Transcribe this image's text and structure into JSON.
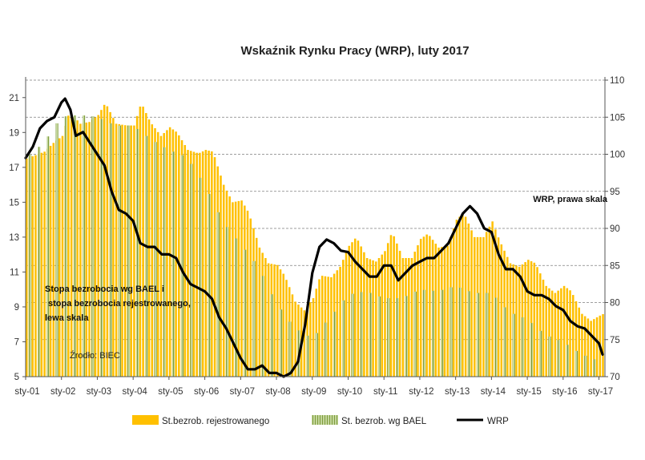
{
  "chart_data": {
    "type": "bar",
    "title": "Wskaźnik Rynku Pracy (WRP), luty 2017",
    "left_axis": {
      "range": [
        5,
        22
      ],
      "ticks": [
        5,
        7,
        9,
        11,
        13,
        15,
        17,
        19,
        21
      ]
    },
    "right_axis": {
      "range": [
        70,
        110
      ],
      "ticks": [
        70,
        75,
        80,
        85,
        90,
        95,
        100,
        105,
        110
      ]
    },
    "x_tick_labels": [
      "sty-01",
      "sty-02",
      "sty-03",
      "sty-04",
      "sty-05",
      "sty-06",
      "sty-07",
      "sty-08",
      "sty-09",
      "sty-10",
      "sty-11",
      "sty-12",
      "sty-13",
      "sty-14",
      "sty-15",
      "sty-16",
      "sty-17"
    ],
    "x_range": [
      2001.0,
      2017.1667
    ],
    "grid": "horizontal dashed",
    "legend_position": "bottom",
    "series": [
      {
        "name": "St.bezrob. rejestrowanego",
        "type": "bar",
        "axis": "left",
        "color": "#FFC000",
        "points": [
          [
            2001.0,
            17.5
          ],
          [
            2001.5,
            17.9
          ],
          [
            2001.75,
            18.4
          ],
          [
            2002.0,
            18.8
          ],
          [
            2002.2,
            20.2
          ],
          [
            2002.5,
            19.5
          ],
          [
            2002.75,
            19.6
          ],
          [
            2003.0,
            20.0
          ],
          [
            2003.2,
            20.7
          ],
          [
            2003.5,
            19.5
          ],
          [
            2003.8,
            19.4
          ],
          [
            2004.0,
            19.4
          ],
          [
            2004.2,
            20.7
          ],
          [
            2004.45,
            19.6
          ],
          [
            2004.75,
            18.8
          ],
          [
            2005.0,
            19.3
          ],
          [
            2005.2,
            19.0
          ],
          [
            2005.5,
            18.0
          ],
          [
            2005.8,
            17.8
          ],
          [
            2006.0,
            18.0
          ],
          [
            2006.2,
            17.9
          ],
          [
            2006.5,
            16.0
          ],
          [
            2006.75,
            15.0
          ],
          [
            2007.0,
            15.1
          ],
          [
            2007.2,
            14.4
          ],
          [
            2007.5,
            12.4
          ],
          [
            2007.75,
            11.5
          ],
          [
            2008.0,
            11.4
          ],
          [
            2008.2,
            10.8
          ],
          [
            2008.5,
            9.3
          ],
          [
            2008.75,
            8.8
          ],
          [
            2009.0,
            9.5
          ],
          [
            2009.2,
            10.8
          ],
          [
            2009.5,
            10.7
          ],
          [
            2009.75,
            11.3
          ],
          [
            2010.0,
            12.5
          ],
          [
            2010.2,
            13.0
          ],
          [
            2010.5,
            11.8
          ],
          [
            2010.75,
            11.6
          ],
          [
            2011.0,
            12.2
          ],
          [
            2011.2,
            13.3
          ],
          [
            2011.5,
            11.8
          ],
          [
            2011.75,
            11.8
          ],
          [
            2012.0,
            12.9
          ],
          [
            2012.2,
            13.2
          ],
          [
            2012.5,
            12.4
          ],
          [
            2012.75,
            12.5
          ],
          [
            2013.0,
            14.0
          ],
          [
            2013.2,
            14.4
          ],
          [
            2013.5,
            13.0
          ],
          [
            2013.75,
            13.0
          ],
          [
            2014.0,
            13.9
          ],
          [
            2014.2,
            12.8
          ],
          [
            2014.5,
            11.5
          ],
          [
            2014.75,
            11.3
          ],
          [
            2015.0,
            11.7
          ],
          [
            2015.2,
            11.5
          ],
          [
            2015.5,
            10.2
          ],
          [
            2015.75,
            9.8
          ],
          [
            2016.0,
            10.2
          ],
          [
            2016.2,
            9.9
          ],
          [
            2016.5,
            8.6
          ],
          [
            2016.75,
            8.2
          ],
          [
            2017.0,
            8.5
          ],
          [
            2017.1,
            8.6
          ]
        ]
      },
      {
        "name": "St. bezrob. wg BAEL",
        "type": "bar",
        "axis": "left",
        "color": "#9BBB59",
        "points": [
          [
            2001.0,
            17.5
          ],
          [
            2001.5,
            18.4
          ],
          [
            2002.0,
            19.9
          ],
          [
            2002.5,
            20.0
          ],
          [
            2003.0,
            19.9
          ],
          [
            2003.5,
            19.4
          ],
          [
            2004.0,
            19.4
          ],
          [
            2004.5,
            18.6
          ],
          [
            2005.0,
            18.0
          ],
          [
            2005.5,
            17.6
          ],
          [
            2006.0,
            16.0
          ],
          [
            2006.5,
            13.9
          ],
          [
            2007.0,
            12.6
          ],
          [
            2007.5,
            11.3
          ],
          [
            2008.0,
            9.2
          ],
          [
            2008.5,
            7.8
          ],
          [
            2009.0,
            7.2
          ],
          [
            2009.5,
            8.4
          ],
          [
            2010.0,
            9.7
          ],
          [
            2010.5,
            9.9
          ],
          [
            2011.0,
            9.5
          ],
          [
            2011.5,
            9.5
          ],
          [
            2012.0,
            10.0
          ],
          [
            2012.5,
            9.9
          ],
          [
            2013.0,
            10.2
          ],
          [
            2013.5,
            9.8
          ],
          [
            2014.0,
            9.8
          ],
          [
            2014.5,
            8.7
          ],
          [
            2015.0,
            8.3
          ],
          [
            2015.5,
            7.4
          ],
          [
            2016.0,
            7.0
          ],
          [
            2016.5,
            6.3
          ],
          [
            2017.0,
            5.9
          ]
        ]
      },
      {
        "name": "WRP",
        "type": "line",
        "axis": "right",
        "color": "#000000",
        "points": [
          [
            2001.0,
            99.5
          ],
          [
            2001.2,
            101.0
          ],
          [
            2001.4,
            103.5
          ],
          [
            2001.6,
            104.5
          ],
          [
            2001.8,
            105.0
          ],
          [
            2002.0,
            107.0
          ],
          [
            2002.1,
            107.5
          ],
          [
            2002.25,
            106.0
          ],
          [
            2002.4,
            102.5
          ],
          [
            2002.6,
            103.0
          ],
          [
            2002.8,
            101.5
          ],
          [
            2003.0,
            100.0
          ],
          [
            2003.2,
            98.5
          ],
          [
            2003.4,
            95.0
          ],
          [
            2003.6,
            92.5
          ],
          [
            2003.8,
            92.0
          ],
          [
            2004.0,
            91.0
          ],
          [
            2004.2,
            88.0
          ],
          [
            2004.4,
            87.5
          ],
          [
            2004.6,
            87.5
          ],
          [
            2004.8,
            86.5
          ],
          [
            2005.0,
            86.5
          ],
          [
            2005.2,
            86.0
          ],
          [
            2005.4,
            84.0
          ],
          [
            2005.6,
            82.5
          ],
          [
            2005.8,
            82.0
          ],
          [
            2006.0,
            81.5
          ],
          [
            2006.2,
            80.5
          ],
          [
            2006.4,
            78.0
          ],
          [
            2006.6,
            76.5
          ],
          [
            2006.8,
            74.5
          ],
          [
            2007.0,
            72.5
          ],
          [
            2007.2,
            71.0
          ],
          [
            2007.4,
            71.0
          ],
          [
            2007.6,
            71.5
          ],
          [
            2007.8,
            70.5
          ],
          [
            2008.0,
            70.5
          ],
          [
            2008.2,
            70.0
          ],
          [
            2008.4,
            70.5
          ],
          [
            2008.6,
            72.0
          ],
          [
            2008.8,
            77.0
          ],
          [
            2009.0,
            84.0
          ],
          [
            2009.2,
            87.5
          ],
          [
            2009.4,
            88.5
          ],
          [
            2009.6,
            88.0
          ],
          [
            2009.8,
            87.0
          ],
          [
            2010.0,
            86.8
          ],
          [
            2010.2,
            85.5
          ],
          [
            2010.4,
            84.5
          ],
          [
            2010.6,
            83.5
          ],
          [
            2010.8,
            83.5
          ],
          [
            2011.0,
            85.0
          ],
          [
            2011.2,
            85.0
          ],
          [
            2011.4,
            83.0
          ],
          [
            2011.6,
            84.0
          ],
          [
            2011.8,
            85.0
          ],
          [
            2012.0,
            85.5
          ],
          [
            2012.2,
            86.0
          ],
          [
            2012.4,
            86.0
          ],
          [
            2012.6,
            87.0
          ],
          [
            2012.8,
            88.0
          ],
          [
            2013.0,
            90.0
          ],
          [
            2013.2,
            92.0
          ],
          [
            2013.4,
            93.0
          ],
          [
            2013.6,
            92.0
          ],
          [
            2013.8,
            90.0
          ],
          [
            2014.0,
            89.5
          ],
          [
            2014.2,
            86.5
          ],
          [
            2014.4,
            84.5
          ],
          [
            2014.6,
            84.5
          ],
          [
            2014.8,
            83.5
          ],
          [
            2015.0,
            81.5
          ],
          [
            2015.2,
            81.0
          ],
          [
            2015.4,
            81.0
          ],
          [
            2015.6,
            80.5
          ],
          [
            2015.8,
            79.5
          ],
          [
            2016.0,
            79.0
          ],
          [
            2016.2,
            77.5
          ],
          [
            2016.4,
            76.8
          ],
          [
            2016.6,
            76.5
          ],
          [
            2016.8,
            75.5
          ],
          [
            2017.0,
            74.5
          ],
          [
            2017.1,
            73.0
          ]
        ]
      }
    ],
    "annotations": {
      "right_axis_note": "WRP, prawa skala",
      "left_axis_note_lines": [
        "Stopa bezrobocia wg BAEL i",
        "stopa bezrobocia rejestrowanego,",
        "lewa skala"
      ],
      "source": "Źrodło: BIEC"
    },
    "legend": [
      {
        "label": "St.bezrob. rejestrowanego",
        "color": "#FFC000",
        "kind": "bar"
      },
      {
        "label": "St. bezrob. wg BAEL",
        "color": "#9BBB59",
        "kind": "bar"
      },
      {
        "label": "WRP",
        "color": "#000000",
        "kind": "line"
      }
    ]
  }
}
